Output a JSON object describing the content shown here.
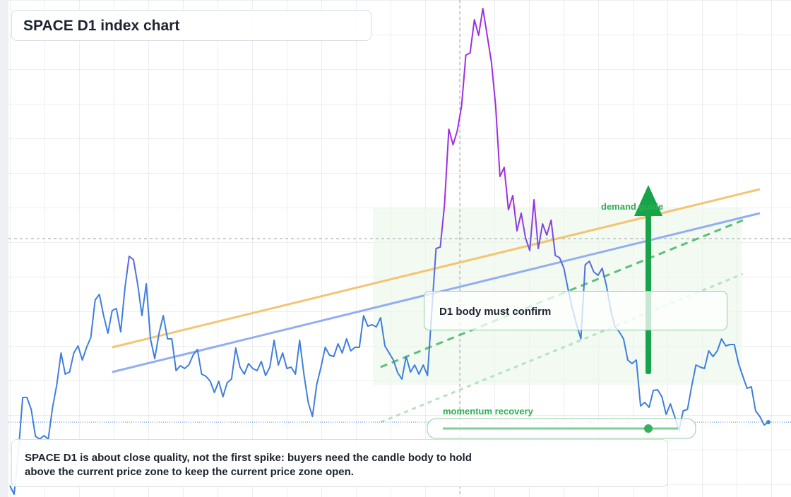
{
  "chart_data": {
    "type": "line",
    "title": "SPACE D1 index chart",
    "annotations": [
      "demand guide",
      "D1 body must confirm",
      "momentum recovery"
    ],
    "note": [
      "SPACE D1 is about close quality, not the first spike: buyers need the candle body to hold",
      "above the current price zone to keep the current price zone open."
    ],
    "color": "#3f7fdc",
    "peak_color": "#a12de2",
    "ylim": [
      0,
      704
    ],
    "values": [
      16,
      4,
      64,
      141,
      141,
      124,
      86,
      82,
      87,
      82,
      126,
      159,
      204,
      174,
      177,
      204,
      214,
      194,
      212,
      226,
      279,
      287,
      257,
      232,
      264,
      267,
      234,
      296,
      341,
      336,
      301,
      257,
      302,
      224,
      196,
      232,
      257,
      224,
      224,
      179,
      186,
      182,
      187,
      201,
      209,
      174,
      171,
      164,
      148,
      164,
      142,
      162,
      167,
      211,
      184,
      174,
      189,
      182,
      179,
      192,
      172,
      184,
      222,
      187,
      204,
      182,
      184,
      174,
      222,
      174,
      134,
      114,
      159,
      184,
      212,
      201,
      199,
      217,
      204,
      224,
      207,
      212,
      212,
      257,
      242,
      244,
      241,
      254,
      214,
      204,
      194,
      176,
      167,
      199,
      177,
      187,
      174,
      187,
      172,
      262,
      352,
      354,
      414,
      521,
      499,
      519,
      554,
      626,
      629,
      676,
      654,
      692,
      654,
      616,
      554,
      454,
      467,
      407,
      427,
      377,
      402,
      367,
      349,
      421,
      352,
      387,
      371,
      392,
      342,
      339,
      324,
      294,
      267,
      244,
      224,
      329,
      334,
      319,
      314,
      324,
      299,
      264,
      241,
      234,
      224,
      194,
      189,
      194,
      129,
      134,
      127,
      151,
      152,
      142,
      117,
      132,
      114,
      94,
      122,
      124,
      157,
      187,
      184,
      182,
      207,
      199,
      207,
      224,
      214,
      216,
      216,
      189,
      171,
      154,
      156,
      122,
      114,
      102,
      106
    ],
    "trendlines": [
      {
        "color": "#f5c470",
        "x": [
          24,
          176
        ],
        "values": [
          212,
          436
        ],
        "dash": false
      },
      {
        "color": "#93aef0",
        "x": [
          24,
          176
        ],
        "values": [
          177,
          402
        ],
        "dash": false
      },
      {
        "color": "#5cbf78",
        "x": [
          87,
          172
        ],
        "values": [
          184,
          392
        ],
        "dash": true
      },
      {
        "color": "#b5e3c1",
        "x": [
          87,
          172
        ],
        "values": [
          106,
          316
        ],
        "dash": true
      }
    ]
  }
}
